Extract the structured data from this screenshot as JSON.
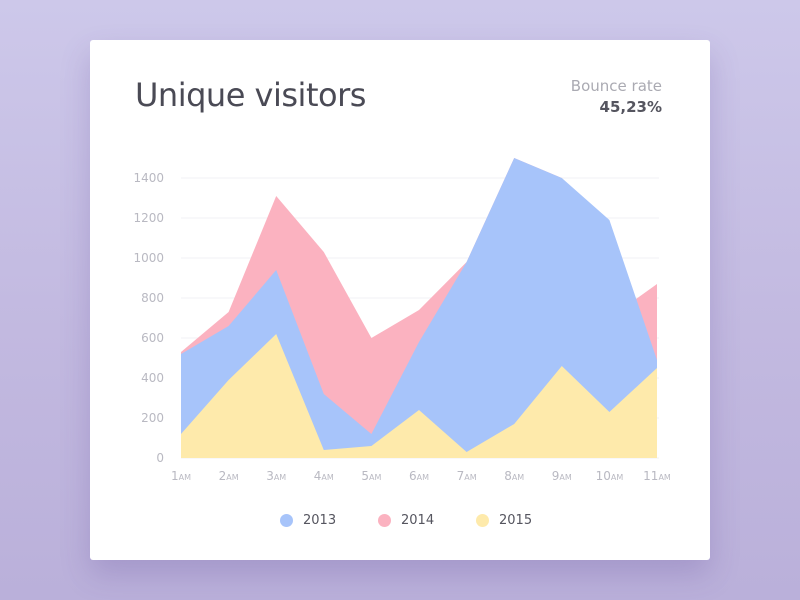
{
  "header": {
    "title": "Unique visitors",
    "bounce_label": "Bounce rate",
    "bounce_value": "45,23%"
  },
  "chart_data": {
    "type": "area",
    "title": "Unique visitors",
    "x": [
      "1",
      "2",
      "3",
      "4",
      "5",
      "6",
      "7",
      "8",
      "9",
      "10",
      "11"
    ],
    "x_suffix": "AM",
    "yticks": [
      0,
      200,
      400,
      600,
      800,
      1000,
      1200,
      1400
    ],
    "ylim": [
      0,
      1500
    ],
    "grid": true,
    "legend_position": "bottom",
    "series": [
      {
        "name": "2014",
        "color": "#fbb2c0",
        "values": [
          530,
          730,
          1310,
          1030,
          600,
          740,
          980,
          1500,
          1400,
          700,
          870
        ]
      },
      {
        "name": "2013",
        "color": "#a7c4fa",
        "values": [
          520,
          660,
          940,
          320,
          120,
          580,
          980,
          1500,
          1400,
          1190,
          490
        ]
      },
      {
        "name": "2015",
        "color": "#feeaab",
        "values": [
          120,
          390,
          620,
          40,
          60,
          240,
          30,
          170,
          460,
          230,
          450
        ]
      }
    ]
  },
  "legend": {
    "items": [
      {
        "label": "2013",
        "color": "#a7c4fa"
      },
      {
        "label": "2014",
        "color": "#fbb2c0"
      },
      {
        "label": "2015",
        "color": "#feeaab"
      }
    ]
  }
}
